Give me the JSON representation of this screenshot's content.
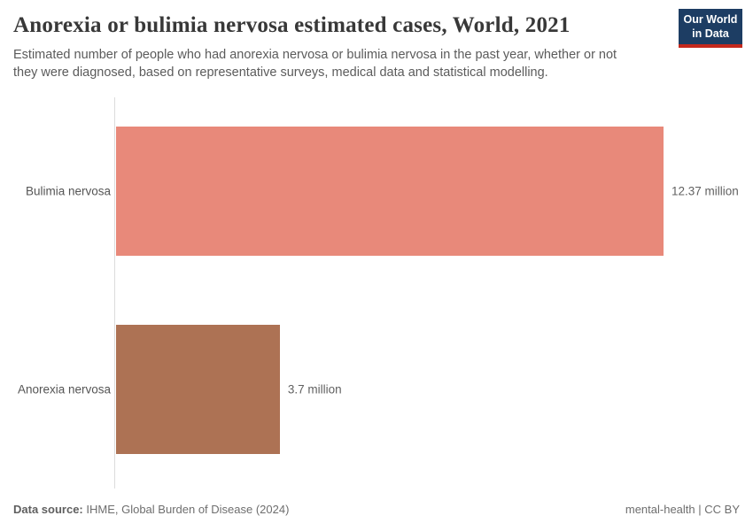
{
  "header": {
    "title": "Anorexia or bulimia nervosa estimated cases, World, 2021",
    "subtitle": "Estimated number of people who had anorexia nervosa or bulimia nervosa in the past year, whether or not they were diagnosed, based on representative surveys, medical data and statistical modelling.",
    "logo": {
      "line1": "Our World",
      "line2": "in Data",
      "bg_color": "#1d3d63",
      "accent_color": "#c4281c"
    }
  },
  "chart_data": {
    "type": "bar",
    "orientation": "horizontal",
    "title": "Anorexia or bulimia nervosa estimated cases, World, 2021",
    "categories": [
      "Bulimia nervosa",
      "Anorexia nervosa"
    ],
    "values": [
      12.37,
      3.7
    ],
    "unit": "million people",
    "value_labels": [
      "12.37 million",
      "3.7 million"
    ],
    "colors": [
      "#e8897a",
      "#ad7254"
    ],
    "xlabel": "",
    "ylabel": "",
    "xlim": [
      0,
      12.37
    ],
    "grid": false,
    "legend": false,
    "axis_line_color": "#dcdcdc"
  },
  "footer": {
    "datasource_label": "Data source:",
    "datasource_value": "IHME, Global Burden of Disease (2024)",
    "note": "mental-health",
    "separator": " | ",
    "license": "CC BY"
  }
}
